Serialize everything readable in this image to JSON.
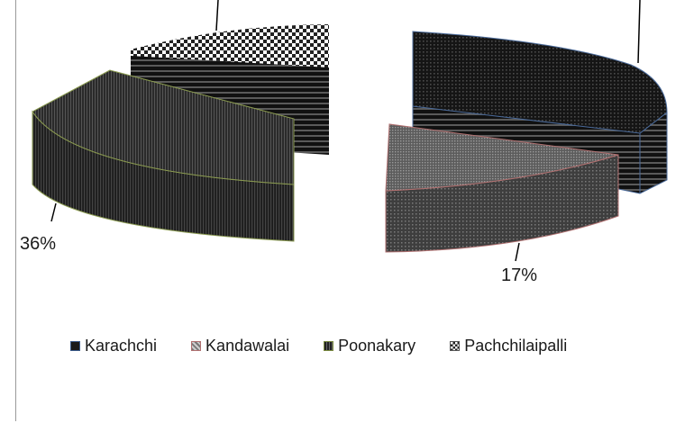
{
  "chart_data": {
    "type": "pie",
    "style": "3d-exploded",
    "slices": [
      {
        "name": "Karachchi",
        "value": null,
        "label": "",
        "color": "#1a1a1a",
        "edge_color": "#4a6a9a"
      },
      {
        "name": "Kandawalai",
        "value": 17,
        "label": "17%",
        "color": "#6a6a6a",
        "edge_color": "#b07070"
      },
      {
        "name": "Poonakary",
        "value": 36,
        "label": "36%",
        "color": "#2a2a2a",
        "edge_color": "#8a9a50"
      },
      {
        "name": "Pachchilaipalli",
        "value": null,
        "label": "",
        "color": "#d8d8d8",
        "edge_color": "#808080"
      }
    ],
    "legend": {
      "position": "bottom",
      "items": [
        "Karachchi",
        "Kandawalai",
        "Poonakary",
        "Pachchilaipalli"
      ]
    }
  }
}
